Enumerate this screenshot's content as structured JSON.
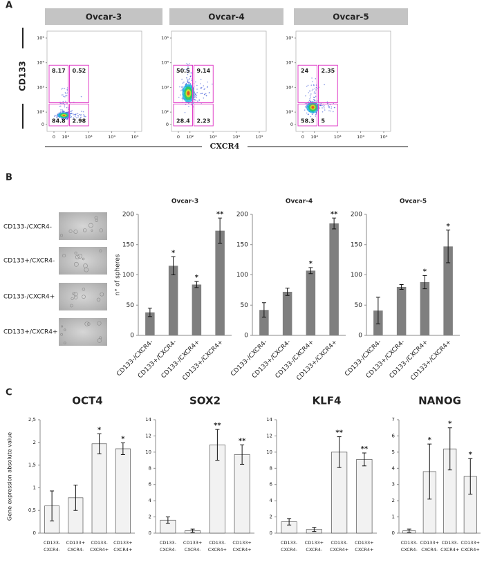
{
  "panel_labels": [
    "A",
    "B",
    "C"
  ],
  "flow_axes": {
    "x_label": "CXCR4",
    "y_label": "CD133"
  },
  "sphere_rows": [
    "CD133-/CXCR4-",
    "CD133+/CXCR4-",
    "CD133-/CXCR4+",
    "CD133+/CXCR4+"
  ],
  "chart_data": [
    {
      "type": "flow",
      "title": "Ovcar-3",
      "quadrants": [
        8.17,
        0.52,
        84.8,
        2.98
      ],
      "xlim": [
        0,
        100000
      ],
      "ylim": [
        0,
        100000
      ],
      "scale": "biexponential",
      "xticks": [
        0,
        {
          "value": 100,
          "label": "10²"
        },
        {
          "value": 1000,
          "label": "10³"
        },
        {
          "value": 10000,
          "label": "10⁴"
        },
        {
          "value": 100000,
          "label": "10⁵"
        }
      ],
      "yticks": [
        0,
        {
          "value": 100,
          "label": "10²"
        },
        {
          "value": 1000,
          "label": "10³"
        },
        {
          "value": 10000,
          "label": "10⁴"
        },
        {
          "value": 100000,
          "label": "10⁵"
        }
      ]
    },
    {
      "type": "flow",
      "title": "Ovcar-4",
      "quadrants": [
        50.5,
        9.14,
        28.4,
        2.23
      ],
      "xlim": [
        0,
        100000
      ],
      "ylim": [
        0,
        100000
      ],
      "scale": "biexponential",
      "xticks": [
        0,
        {
          "value": 100,
          "label": "10²"
        },
        {
          "value": 1000,
          "label": "10³"
        },
        {
          "value": 10000,
          "label": "10⁴"
        },
        {
          "value": 100000,
          "label": "10⁵"
        }
      ],
      "yticks": [
        0,
        {
          "value": 100,
          "label": "10²"
        },
        {
          "value": 1000,
          "label": "10³"
        },
        {
          "value": 10000,
          "label": "10⁴"
        },
        {
          "value": 100000,
          "label": "10⁵"
        }
      ]
    },
    {
      "type": "flow",
      "title": "Ovcar-5",
      "quadrants": [
        24,
        2.35,
        58.3,
        5
      ],
      "xlim": [
        0,
        100000
      ],
      "ylim": [
        0,
        100000
      ],
      "scale": "biexponential",
      "xticks": [
        0,
        {
          "value": 100,
          "label": "10²"
        },
        {
          "value": 1000,
          "label": "10³"
        },
        {
          "value": 10000,
          "label": "10⁴"
        },
        {
          "value": 100000,
          "label": "10⁵"
        }
      ],
      "yticks": [
        0,
        {
          "value": 100,
          "label": "10²"
        },
        {
          "value": 1000,
          "label": "10³"
        },
        {
          "value": 10000,
          "label": "10⁴"
        },
        {
          "value": 100000,
          "label": "10⁵"
        }
      ]
    },
    {
      "type": "bar",
      "title": "Ovcar-3",
      "ylabel": "n° of spheres",
      "color": "#7f7f7f",
      "categories": [
        "CD133-/CXCR4-",
        "CD133+/CXCR4-",
        "CD133-/CXCR4+",
        "CD133+/CXCR4+"
      ],
      "values": [
        38,
        115,
        84,
        173
      ],
      "errors": [
        7,
        15,
        5,
        21
      ],
      "annotations": [
        null,
        "*",
        "*",
        "**"
      ],
      "ylim": [
        0,
        200
      ],
      "yticks": [
        0,
        50,
        100,
        150,
        200
      ]
    },
    {
      "type": "bar",
      "title": "Ovcar-4",
      "color": "#7f7f7f",
      "categories": [
        "CD133-/CXCR4-",
        "CD133+/CXCR4-",
        "CD133-/CXCR4+",
        "CD133+/CXCR4+"
      ],
      "values": [
        42,
        72,
        107,
        185
      ],
      "errors": [
        12,
        6,
        5,
        9
      ],
      "annotations": [
        null,
        null,
        "*",
        "**"
      ],
      "ylim": [
        0,
        200
      ],
      "yticks": [
        0,
        50,
        100,
        150,
        200
      ]
    },
    {
      "type": "bar",
      "title": "Ovcar-5",
      "color": "#7f7f7f",
      "categories": [
        "CD133-/CXCR4-",
        "CD133+/CXCR4-",
        "CD133-/CXCR4+",
        "CD133+/CXCR4+"
      ],
      "values": [
        41,
        80,
        88,
        147
      ],
      "errors": [
        22,
        4,
        11,
        27
      ],
      "annotations": [
        null,
        null,
        "*",
        "*"
      ],
      "ylim": [
        0,
        200
      ],
      "yticks": [
        0,
        50,
        100,
        150,
        200
      ]
    },
    {
      "type": "gene",
      "title": "OCT4",
      "ylabel": "Gene expression absolute value",
      "color": "#f2f2f2",
      "categories": [
        [
          "CD133-",
          "CXCR4-"
        ],
        [
          "CD133+",
          "CXCR4-"
        ],
        [
          "CD133-",
          "CXCR4+"
        ],
        [
          "CD133+",
          "CXCR4+"
        ]
      ],
      "values": [
        0.6,
        0.78,
        1.97,
        1.86
      ],
      "errors": [
        0.33,
        0.28,
        0.22,
        0.13
      ],
      "annotations": [
        null,
        null,
        "*",
        "*"
      ],
      "ylim": [
        0,
        2.5
      ],
      "yticks": [
        0,
        {
          "value": 0.5,
          "label": "0,5"
        },
        1,
        {
          "value": 1.5,
          "label": "1,5"
        },
        2,
        {
          "value": 2.5,
          "label": "2,5"
        }
      ]
    },
    {
      "type": "gene",
      "title": "SOX2",
      "color": "#f2f2f2",
      "categories": [
        [
          "CD133-",
          "CXCR4-"
        ],
        [
          "CD133+",
          "CXCR4-"
        ],
        [
          "CD133-",
          "CXCR4+"
        ],
        [
          "CD133+",
          "CXCR4+"
        ]
      ],
      "values": [
        1.6,
        0.3,
        10.9,
        9.7
      ],
      "errors": [
        0.4,
        0.2,
        1.9,
        1.2
      ],
      "annotations": [
        null,
        null,
        "**",
        "**"
      ],
      "ylim": [
        0,
        14
      ],
      "yticks": [
        0,
        2,
        4,
        6,
        8,
        10,
        12,
        14
      ]
    },
    {
      "type": "gene",
      "title": "KLF4",
      "color": "#f2f2f2",
      "categories": [
        [
          "CD133-",
          "CXCR4-"
        ],
        [
          "CD133+",
          "CXCR4-"
        ],
        [
          "CD133-",
          "CXCR4+"
        ],
        [
          "CD133+",
          "CXCR4+"
        ]
      ],
      "values": [
        1.4,
        0.45,
        10,
        9.1
      ],
      "errors": [
        0.4,
        0.25,
        1.9,
        0.8
      ],
      "annotations": [
        null,
        null,
        "**",
        "**"
      ],
      "ylim": [
        0,
        14
      ],
      "yticks": [
        0,
        2,
        4,
        6,
        8,
        10,
        12,
        14
      ]
    },
    {
      "type": "gene",
      "title": "NANOG",
      "color": "#f2f2f2",
      "categories": [
        [
          "CD133-",
          "CXCR4-"
        ],
        [
          "CD133+",
          "CXCR4-"
        ],
        [
          "CD133-",
          "CXCR4+"
        ],
        [
          "CD133+",
          "CXCR4+"
        ]
      ],
      "values": [
        0.15,
        3.8,
        5.2,
        3.5
      ],
      "errors": [
        0.1,
        1.7,
        1.3,
        1.1
      ],
      "annotations": [
        null,
        "*",
        "*",
        "*"
      ],
      "ylim": [
        0,
        7
      ],
      "yticks": [
        0,
        1,
        2,
        3,
        4,
        5,
        6,
        7
      ]
    }
  ]
}
